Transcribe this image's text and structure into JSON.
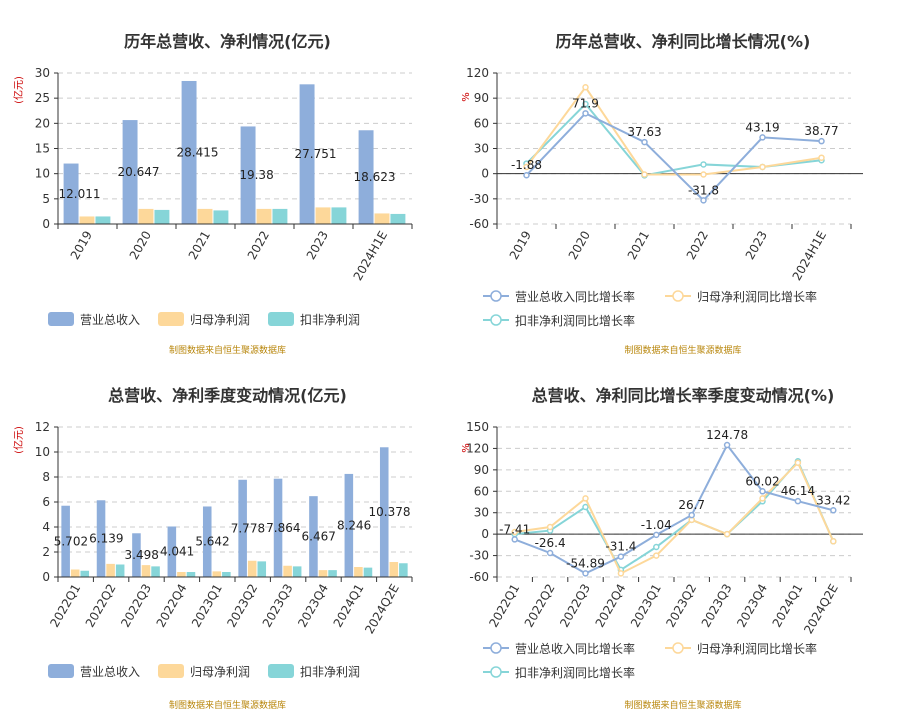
{
  "colors": {
    "revenue": "#8eaedb",
    "netprofit": "#fdd89a",
    "deducted": "#86d5d8",
    "revenue_line": "#8eaedb",
    "netprofit_line": "#fdd89a",
    "deducted_line": "#86d5d8",
    "axis": "#333333",
    "grid": "#cccccc",
    "unit": "#cc0000",
    "source": "#b8860b"
  },
  "source_note": "制图数据来自恒生聚源数据库",
  "chart_data": [
    {
      "id": "annual_values",
      "type": "bar",
      "title": "历年总营收、净利情况(亿元)",
      "unit_label": "(亿元)",
      "categories": [
        "2019",
        "2020",
        "2021",
        "2022",
        "2023",
        "2024H1E"
      ],
      "series": [
        {
          "name": "营业总收入",
          "values": [
            12.011,
            20.647,
            28.415,
            19.38,
            27.751,
            18.623
          ]
        },
        {
          "name": "归母净利润",
          "values": [
            1.5,
            3.0,
            3.0,
            3.0,
            3.3,
            2.1
          ]
        },
        {
          "name": "扣非净利润",
          "values": [
            1.5,
            2.8,
            2.7,
            3.0,
            3.3,
            2.0
          ]
        }
      ],
      "data_labels": [
        "12.011",
        "20.647",
        "28.415",
        "19.38",
        "27.751",
        "18.623"
      ],
      "ylim": [
        0,
        30
      ],
      "yticks": [
        0,
        5,
        10,
        15,
        20,
        25,
        30
      ],
      "grid": true,
      "legend": "bottom"
    },
    {
      "id": "annual_growth",
      "type": "line",
      "title": "历年总营收、净利同比增长情况(%)",
      "unit_label": "%",
      "categories": [
        "2019",
        "2020",
        "2021",
        "2022",
        "2023",
        "2024H1E"
      ],
      "series": [
        {
          "name": "营业总收入同比增长率",
          "values": [
            -1.88,
            71.9,
            37.63,
            -31.8,
            43.19,
            38.77
          ]
        },
        {
          "name": "归母净利润同比增长率",
          "values": [
            8,
            103,
            -1,
            -1,
            8,
            19
          ]
        },
        {
          "name": "扣非净利润同比增长率",
          "values": [
            12,
            83,
            -2,
            11,
            8,
            16
          ]
        }
      ],
      "data_labels": [
        "-1.88",
        "71.9",
        "37.63",
        "-31.8",
        "43.19",
        "38.77"
      ],
      "ylim": [
        -60,
        120
      ],
      "yticks": [
        -60,
        -30,
        0,
        30,
        60,
        90,
        120
      ],
      "grid": true,
      "legend": "bottom"
    },
    {
      "id": "quarter_values",
      "type": "bar",
      "title": "总营收、净利季度变动情况(亿元)",
      "unit_label": "(亿元)",
      "categories": [
        "2022Q1",
        "2022Q2",
        "2022Q3",
        "2022Q4",
        "2023Q1",
        "2023Q2",
        "2023Q3",
        "2023Q4",
        "2024Q1",
        "2024Q2E"
      ],
      "series": [
        {
          "name": "营业总收入",
          "values": [
            5.702,
            6.139,
            3.498,
            4.041,
            5.642,
            7.778,
            7.864,
            6.467,
            8.246,
            10.378
          ]
        },
        {
          "name": "归母净利润",
          "values": [
            0.6,
            1.05,
            0.95,
            0.4,
            0.45,
            1.3,
            0.9,
            0.55,
            0.8,
            1.2
          ]
        },
        {
          "name": "扣非净利润",
          "values": [
            0.5,
            1.0,
            0.85,
            0.4,
            0.4,
            1.25,
            0.85,
            0.55,
            0.75,
            1.1
          ]
        }
      ],
      "data_labels": [
        "5.702",
        "6.139",
        "3.498",
        "4.041",
        "5.642",
        "7.778",
        "7.864",
        "6.467",
        "8.246",
        "10.378"
      ],
      "ylim": [
        0,
        12
      ],
      "yticks": [
        0,
        2,
        4,
        6,
        8,
        10,
        12
      ],
      "grid": true,
      "legend": "bottom"
    },
    {
      "id": "quarter_growth",
      "type": "line",
      "title": "总营收、净利同比增长率季度变动情况(%)",
      "unit_label": "%",
      "categories": [
        "2022Q1",
        "2022Q2",
        "2022Q3",
        "2022Q4",
        "2023Q1",
        "2023Q2",
        "2023Q3",
        "2023Q4",
        "2024Q1",
        "2024Q2E"
      ],
      "series": [
        {
          "name": "营业总收入同比增长率",
          "values": [
            -7.41,
            -26.4,
            -54.89,
            -31.4,
            -1.04,
            26.7,
            124.78,
            60.02,
            46.14,
            33.42
          ]
        },
        {
          "name": "归母净利润同比增长率",
          "values": [
            3,
            10,
            50,
            -55,
            -30,
            20,
            0,
            50,
            100,
            -10
          ]
        },
        {
          "name": "扣非净利润同比增长率",
          "values": [
            0,
            5,
            38,
            -50,
            -18,
            20,
            0,
            46,
            102,
            -10
          ]
        }
      ],
      "data_labels": [
        "-7.41",
        "-26.4",
        "-54.89",
        "-31.4",
        "-1.04",
        "26.7",
        "124.78",
        "60.02",
        "46.14",
        "33.42"
      ],
      "ylim": [
        -60,
        150
      ],
      "yticks": [
        -60,
        -30,
        0,
        30,
        60,
        90,
        120,
        150
      ],
      "grid": true,
      "legend": "bottom"
    }
  ]
}
